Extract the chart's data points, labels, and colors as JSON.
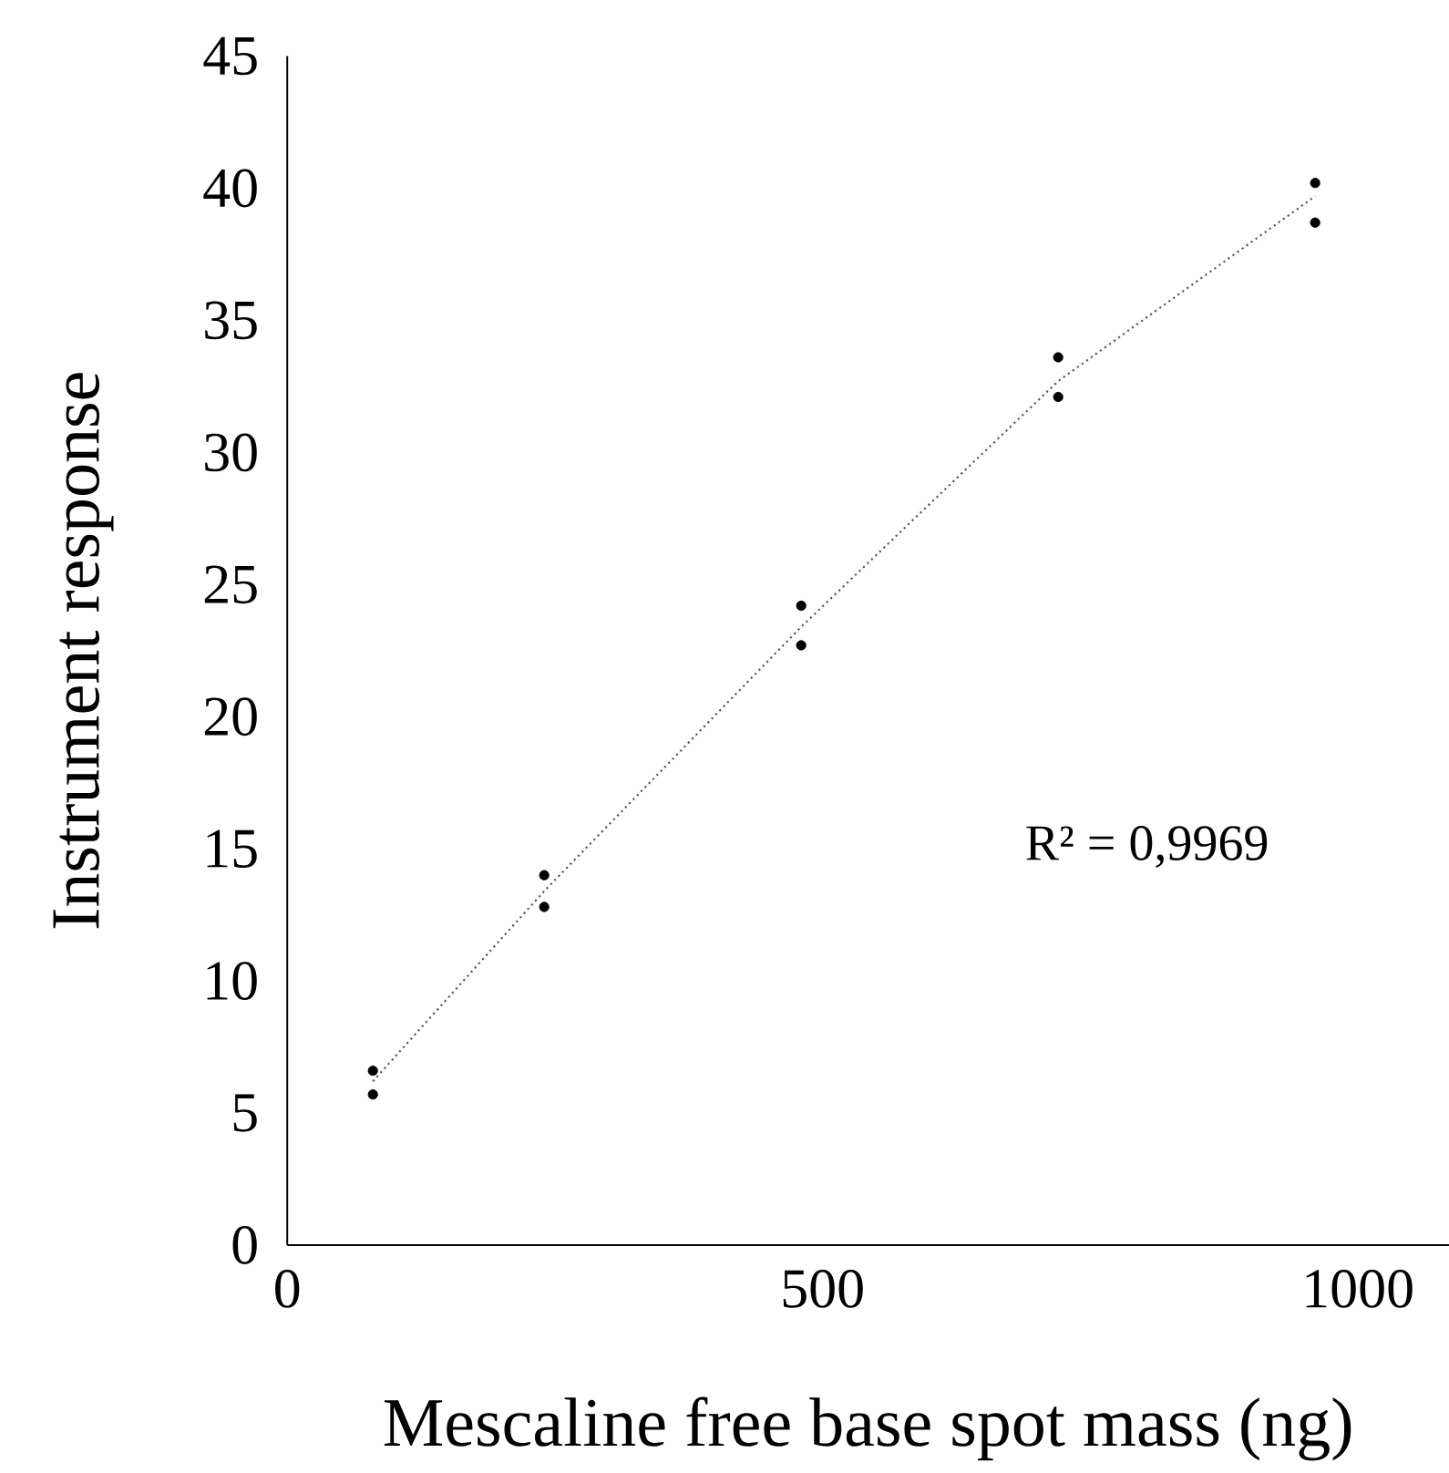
{
  "chart_data": {
    "type": "scatter",
    "xlabel": "Mescaline free base spot mass (ng)",
    "ylabel": "Instrument response",
    "xlim": [
      0,
      1085
    ],
    "ylim": [
      0,
      45
    ],
    "xticks": [
      0,
      500,
      1000
    ],
    "yticks": [
      0,
      5,
      10,
      15,
      20,
      25,
      30,
      35,
      40,
      45
    ],
    "grid": false,
    "legend": false,
    "annotations": [
      "R² = 0,9969"
    ],
    "series": [
      {
        "marker": "circle",
        "color": "#000000",
        "x": [
          80,
          80,
          240,
          240,
          480,
          480,
          720,
          720,
          960,
          960
        ],
        "values": [
          6.6,
          5.7,
          14.0,
          12.8,
          24.2,
          22.7,
          33.6,
          32.1,
          40.2,
          38.7
        ]
      },
      {
        "type": "line",
        "marker": "none",
        "line_style": "dotted",
        "color": "#595959",
        "x": [
          80,
          240,
          480,
          720,
          960
        ],
        "values": [
          6.2,
          13.4,
          23.4,
          32.7,
          39.7
        ]
      }
    ]
  }
}
